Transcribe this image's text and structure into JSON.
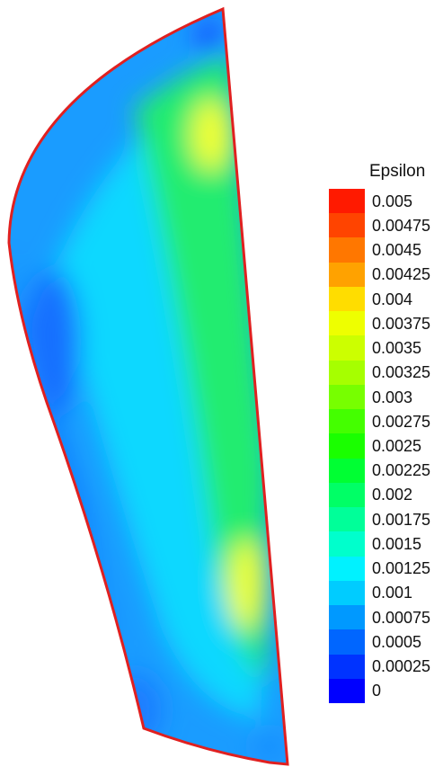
{
  "legend": {
    "title": "Epsilon",
    "levels": [
      {
        "label": "0.005",
        "color": "#ff1a00"
      },
      {
        "label": "0.00475",
        "color": "#ff4400"
      },
      {
        "label": "0.0045",
        "color": "#ff7700"
      },
      {
        "label": "0.00425",
        "color": "#ffa200"
      },
      {
        "label": "0.004",
        "color": "#ffdd00"
      },
      {
        "label": "0.00375",
        "color": "#eeff00"
      },
      {
        "label": "0.0035",
        "color": "#ccff00"
      },
      {
        "label": "0.00325",
        "color": "#a6ff00"
      },
      {
        "label": "0.003",
        "color": "#77ff00"
      },
      {
        "label": "0.00275",
        "color": "#44ff00"
      },
      {
        "label": "0.0025",
        "color": "#1aff00"
      },
      {
        "label": "0.00225",
        "color": "#00ff33"
      },
      {
        "label": "0.002",
        "color": "#00ff66"
      },
      {
        "label": "0.00175",
        "color": "#00ff99"
      },
      {
        "label": "0.0015",
        "color": "#00ffcc"
      },
      {
        "label": "0.00125",
        "color": "#00f2ff"
      },
      {
        "label": "0.001",
        "color": "#00ccff"
      },
      {
        "label": "0.00075",
        "color": "#0099ff"
      },
      {
        "label": "0.0005",
        "color": "#0066ff"
      },
      {
        "label": "0.00025",
        "color": "#0033ff"
      },
      {
        "label": "0",
        "color": "#0000ff"
      }
    ]
  },
  "plot": {
    "outline_color": "#e02020"
  }
}
